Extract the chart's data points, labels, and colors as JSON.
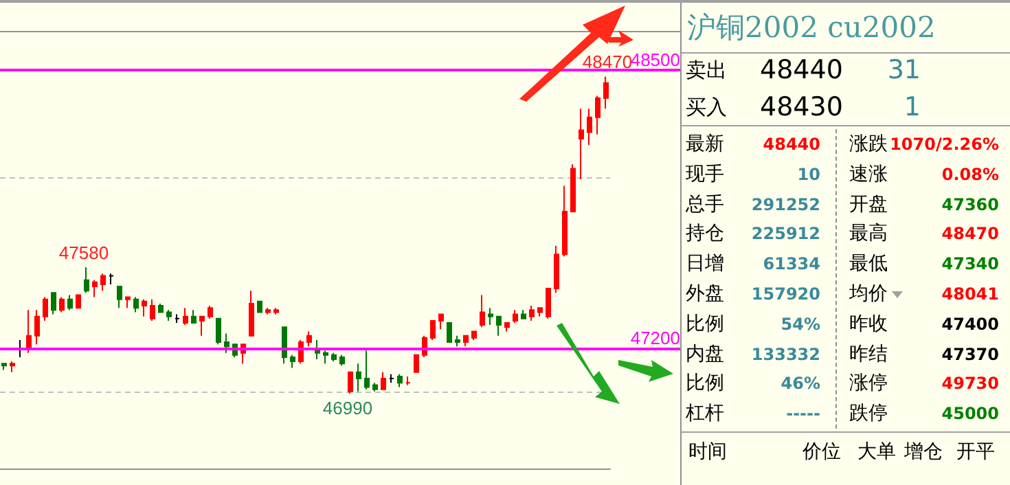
{
  "chart_data": [
    {
      "type": "candlestick",
      "categories": [
        null,
        null,
        null,
        null,
        null,
        null,
        null,
        null,
        null,
        null,
        null,
        null,
        null,
        null,
        null,
        null,
        null,
        null,
        null,
        null,
        null,
        null,
        null,
        null,
        null,
        null,
        null,
        null,
        null,
        null,
        null,
        null,
        null,
        null,
        null,
        null,
        null,
        null,
        null,
        null,
        null,
        null,
        null,
        null,
        null,
        null,
        null,
        null,
        null,
        null,
        null,
        null,
        null,
        null,
        null,
        null,
        null,
        null,
        null,
        null,
        null,
        null,
        null,
        null,
        null,
        null,
        null,
        null,
        null,
        null,
        null,
        null,
        null,
        null
      ],
      "ohlc": [
        [
          47130,
          47130,
          47100,
          47120
        ],
        [
          47120,
          47140,
          47090,
          47130
        ],
        [
          47200,
          47240,
          47160,
          47200
        ],
        [
          47200,
          47380,
          47180,
          47260
        ],
        [
          47260,
          47380,
          47220,
          47350
        ],
        [
          47350,
          47440,
          47330,
          47430
        ],
        [
          47460,
          47460,
          47360,
          47380
        ],
        [
          47380,
          47440,
          47370,
          47430
        ],
        [
          47430,
          47450,
          47380,
          47390
        ],
        [
          47390,
          47450,
          47390,
          47450
        ],
        [
          47520,
          47580,
          47460,
          47470
        ],
        [
          47490,
          47520,
          47440,
          47510
        ],
        [
          47500,
          47550,
          47470,
          47540
        ],
        [
          47540,
          47550,
          47500,
          47540
        ],
        [
          47490,
          47490,
          47390,
          47430
        ],
        [
          47430,
          47440,
          47390,
          47440
        ],
        [
          47430,
          47440,
          47370,
          47390
        ],
        [
          47400,
          47430,
          47350,
          47420
        ],
        [
          47340,
          47430,
          47330,
          47400
        ],
        [
          47400,
          47410,
          47370,
          47370
        ],
        [
          47370,
          47380,
          47330,
          47350
        ],
        [
          47340,
          47360,
          47320,
          47340
        ],
        [
          47320,
          47390,
          47310,
          47350
        ],
        [
          47350,
          47380,
          47320,
          47320
        ],
        [
          47330,
          47350,
          47260,
          47350
        ],
        [
          47350,
          47400,
          47340,
          47390
        ],
        [
          47340,
          47340,
          47220,
          47230
        ],
        [
          47230,
          47270,
          47180,
          47210
        ],
        [
          47220,
          47220,
          47160,
          47170
        ],
        [
          47180,
          47220,
          47130,
          47220
        ],
        [
          47260,
          47470,
          47260,
          47410
        ],
        [
          47420,
          47420,
          47370,
          47370
        ],
        [
          47370,
          47390,
          47360,
          47380
        ],
        [
          47370,
          47390,
          47360,
          47380
        ],
        [
          47300,
          47300,
          47130,
          47160
        ],
        [
          47160,
          47170,
          47110,
          47140
        ],
        [
          47140,
          47240,
          47130,
          47230
        ],
        [
          47230,
          47280,
          47210,
          47260
        ],
        [
          47200,
          47240,
          47150,
          47180
        ],
        [
          47180,
          47190,
          47130,
          47170
        ],
        [
          47170,
          47180,
          47140,
          47150
        ],
        [
          47160,
          47170,
          47120,
          47130
        ],
        [
          47000,
          47090,
          46990,
          47090
        ],
        [
          47090,
          47130,
          47000,
          47060
        ],
        [
          47060,
          47190,
          47010,
          47020
        ],
        [
          47030,
          47040,
          47000,
          47010
        ],
        [
          47010,
          47090,
          47010,
          47060
        ],
        [
          47060,
          47080,
          47040,
          47060
        ],
        [
          47070,
          47080,
          47020,
          47040
        ],
        [
          47040,
          47070,
          47030,
          47040
        ],
        [
          47090,
          47170,
          47090,
          47170
        ],
        [
          47170,
          47260,
          47160,
          47250
        ],
        [
          47250,
          47330,
          47240,
          47330
        ],
        [
          47330,
          47360,
          47290,
          47360
        ],
        [
          47320,
          47320,
          47230,
          47230
        ],
        [
          47240,
          47260,
          47210,
          47230
        ],
        [
          47230,
          47260,
          47210,
          47260
        ],
        [
          47250,
          47280,
          47240,
          47280
        ],
        [
          47310,
          47450,
          47300,
          47370
        ],
        [
          47360,
          47390,
          47310,
          47350
        ],
        [
          47350,
          47350,
          47260,
          47310
        ],
        [
          47300,
          47320,
          47280,
          47320
        ],
        [
          47330,
          47380,
          47320,
          47360
        ],
        [
          47360,
          47380,
          47340,
          47340
        ],
        [
          47350,
          47400,
          47330,
          47380
        ],
        [
          47370,
          47390,
          47350,
          47390
        ],
        [
          47350,
          47480,
          47340,
          47480
        ],
        [
          47480,
          47680,
          47460,
          47640
        ],
        [
          47640,
          47960,
          47630,
          47840
        ],
        [
          47840,
          48060,
          47840,
          48040
        ],
        [
          48180,
          48320,
          47990,
          48220
        ],
        [
          48210,
          48320,
          48150,
          48280
        ],
        [
          48280,
          48380,
          48200,
          48370
        ],
        [
          48370,
          48470,
          48320,
          48440
        ]
      ],
      "colors": [
        "#007700",
        "#ff0000",
        "#000000",
        "#ff0000",
        "#ff0000",
        "#ff0000",
        "#007700",
        "#ff0000",
        "#007700",
        "#ff0000",
        "#007700",
        "#ff0000",
        "#ff0000",
        "#000000",
        "#007700",
        "#ff0000",
        "#007700",
        "#ff0000",
        "#ff0000",
        "#007700",
        "#007700",
        "#000000",
        "#ff0000",
        "#007700",
        "#ff0000",
        "#ff0000",
        "#007700",
        "#007700",
        "#007700",
        "#ff0000",
        "#ff0000",
        "#007700",
        "#ff0000",
        "#ff0000",
        "#007700",
        "#007700",
        "#ff0000",
        "#ff0000",
        "#007700",
        "#007700",
        "#007700",
        "#007700",
        "#ff0000",
        "#007700",
        "#007700",
        "#007700",
        "#ff0000",
        "#000000",
        "#007700",
        "#ff0000",
        "#ff0000",
        "#ff0000",
        "#ff0000",
        "#ff0000",
        "#007700",
        "#007700",
        "#ff0000",
        "#ff0000",
        "#ff0000",
        "#007700",
        "#007700",
        "#ff0000",
        "#ff0000",
        "#007700",
        "#ff0000",
        "#ff0000",
        "#ff0000",
        "#ff0000",
        "#ff0000",
        "#ff0000",
        "#ff0000",
        "#ff0000",
        "#ff0000",
        "#ff0000"
      ],
      "ylim": [
        46640,
        48680
      ],
      "yticks": [
        {
          "value": 47000,
          "label": null
        },
        {
          "value": 48000,
          "label": null
        }
      ],
      "grid": "y",
      "ref_lines": [
        {
          "axis": "y",
          "value": 48500,
          "label": "48500",
          "color": "#ff00ff"
        },
        {
          "axis": "y",
          "value": 47200,
          "label": "47200",
          "color": "#ff00ff"
        }
      ],
      "annotations": [
        {
          "text": "47580",
          "y": 47580
        },
        {
          "text": "46990",
          "y": 46990
        },
        {
          "text": "48470",
          "y": 48470
        }
      ]
    },
    {
      "type": "other",
      "title": "沪铜2002  cu2002",
      "annotations": [
        "卖出",
        "48440",
        "31",
        "买入",
        "48430",
        "1",
        "最新",
        "48440",
        "涨跌",
        "1070/2.26%",
        "现手",
        "10",
        "速涨",
        "0.08%",
        "总手",
        "291252",
        "开盘",
        "47360",
        "持仓",
        "225912",
        "最高",
        "48470",
        "日增",
        "61334",
        "最低",
        "47340",
        "外盘",
        "157920",
        "均价",
        "48041",
        "比例",
        "54%",
        "昨收",
        "47400",
        "内盘",
        "133332",
        "昨结",
        "47370",
        "比例",
        "46%",
        "涨停",
        "49730",
        "杠杆",
        "-----",
        "跌停",
        "45000",
        "时间",
        "价位",
        "大单",
        "增仓",
        "开平"
      ],
      "colors": [
        "#000000",
        "#000000",
        "#3a8a9a",
        "#000000",
        "#000000",
        "#3a8a9a",
        "#000000",
        "#ff0000",
        "#000000",
        "#ff0000",
        "#000000",
        "#3a8a9a",
        "#000000",
        "#ff0000",
        "#000000",
        "#3a8a9a",
        "#000000",
        "#008000",
        "#000000",
        "#3a8a9a",
        "#000000",
        "#ff0000",
        "#000000",
        "#3a8a9a",
        "#000000",
        "#008000",
        "#000000",
        "#3a8a9a",
        "#000000",
        "#ff0000",
        "#000000",
        "#3a8a9a",
        "#000000",
        "#000000",
        "#000000",
        "#3a8a9a",
        "#000000",
        "#000000",
        "#000000",
        "#3a8a9a",
        "#000000",
        "#ff0000",
        "#000000",
        "#3a8a9a",
        "#000000",
        "#008000",
        "#000000",
        "#000000",
        "#000000",
        "#000000",
        "#000000"
      ]
    }
  ]
}
